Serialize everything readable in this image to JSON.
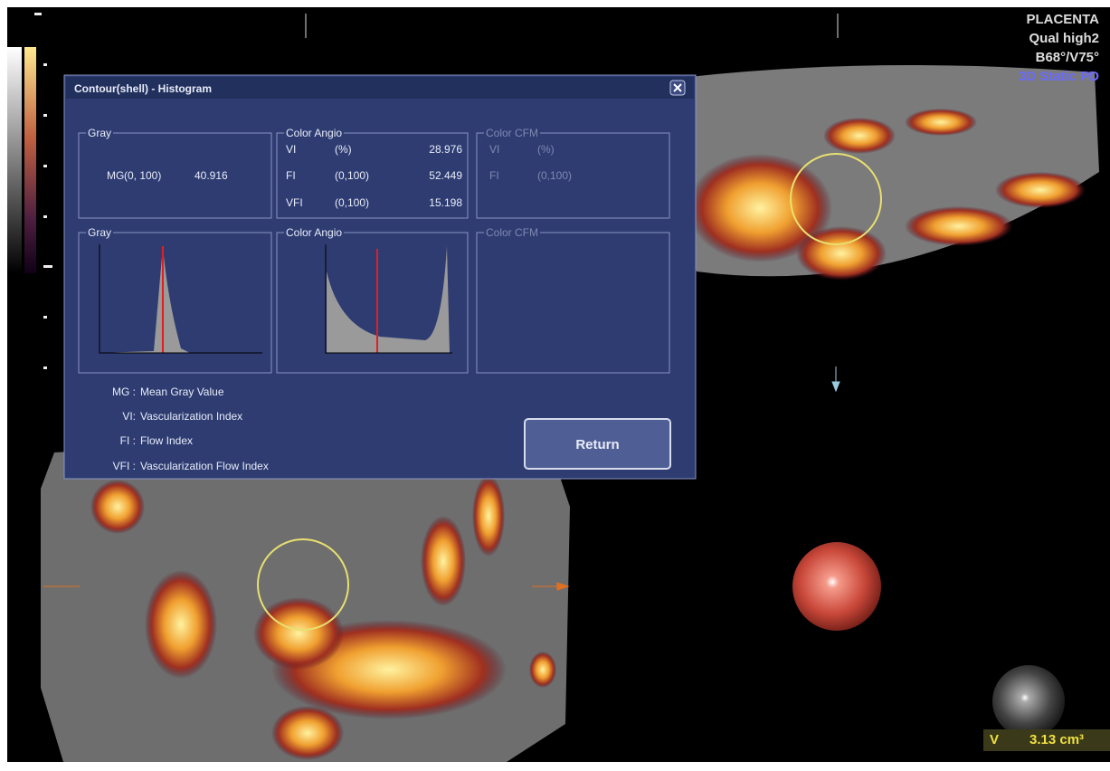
{
  "overlay": {
    "preset": "PLACENTA",
    "quality": "Qual high2",
    "angles": "B68°/V75°",
    "mode": "3D Static PD",
    "volume_label": "V",
    "volume_value": "3.13 cm³"
  },
  "dialog": {
    "title": "Contour(shell) - Histogram",
    "gray": {
      "title": "Gray",
      "rows": [
        [
          "MG",
          "(0, 100)",
          "40.916"
        ]
      ]
    },
    "color_angio": {
      "title": "Color Angio",
      "rows": [
        [
          "VI",
          "(%)",
          "28.976"
        ],
        [
          "FI",
          "(0,100)",
          "52.449"
        ],
        [
          "VFI",
          "(0,100)",
          "15.198"
        ]
      ]
    },
    "color_cfm": {
      "title": "Color CFM",
      "rows": [
        [
          "VI",
          "(%)"
        ],
        [
          "FI",
          "(0,100)"
        ]
      ]
    },
    "histograms": [
      "Gray",
      "Color Angio",
      "Color CFM"
    ],
    "legend": [
      [
        "MG :",
        "Mean Gray Value"
      ],
      [
        "VI:",
        "Vascularization Index"
      ],
      [
        "FI :",
        "Flow Index"
      ],
      [
        "VFI :",
        "Vascularization Flow Index"
      ]
    ],
    "return_button": "Return"
  }
}
